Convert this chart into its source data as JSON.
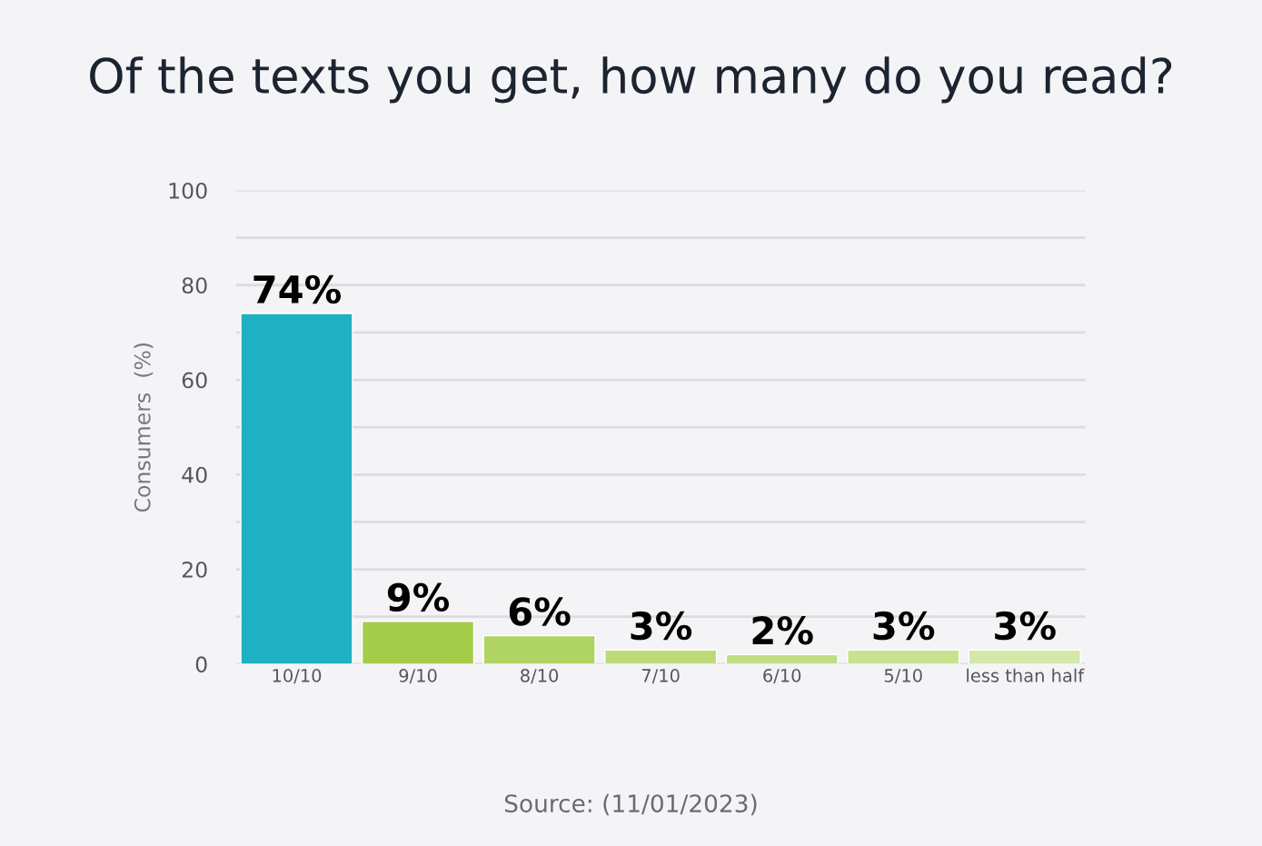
{
  "chart_data": {
    "type": "bar",
    "title": "Of the texts you get, how many do you read?",
    "ylabel": "Consumers  (%)",
    "categories": [
      "10/10",
      "9/10",
      "8/10",
      "7/10",
      "6/10",
      "5/10",
      "less than half"
    ],
    "values": [
      74,
      9,
      6,
      3,
      2,
      3,
      3
    ],
    "colors": [
      "#1fb0c4",
      "#a4cc4a",
      "#b0d463",
      "#bcdb78",
      "#c2de84",
      "#c8e290",
      "#d4e8a8"
    ],
    "value_labels": [
      "74%",
      "9%",
      "6%",
      "3%",
      "2%",
      "3%",
      "3%"
    ],
    "ylim": [
      0,
      100
    ],
    "yticks": [
      0,
      {
        "value": 10,
        "label": null
      },
      20,
      {
        "value": 30,
        "label": null
      },
      40,
      {
        "value": 50,
        "label": null
      },
      60,
      {
        "value": 70,
        "label": null
      },
      80,
      {
        "value": 90,
        "label": null
      },
      100
    ],
    "grid": "y",
    "annotations": [
      "Source: (11/01/2023)"
    ]
  }
}
